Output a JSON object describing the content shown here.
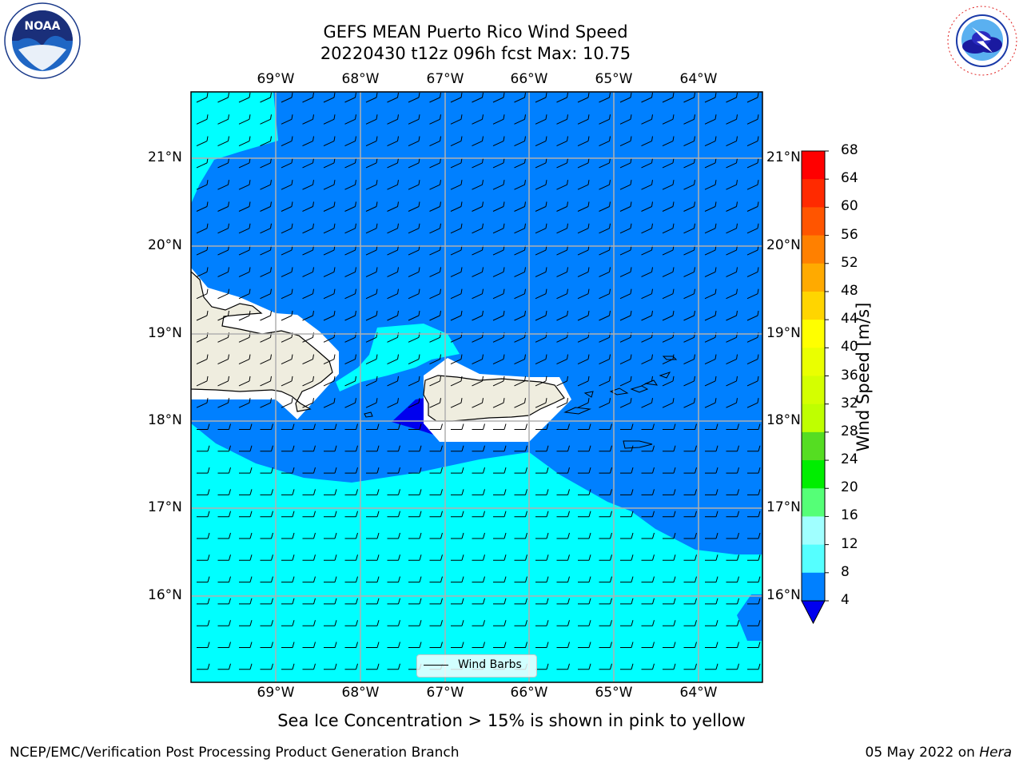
{
  "header": {
    "title_line1": "GEFS MEAN Puerto Rico Wind Speed",
    "title_line2": "20220430 t12z 096h fcst   Max: 10.75"
  },
  "map": {
    "lon_labels": [
      "69°W",
      "68°W",
      "67°W",
      "66°W",
      "65°W",
      "64°W"
    ],
    "lat_labels": [
      "21°N",
      "20°N",
      "19°N",
      "18°N",
      "17°N",
      "16°N"
    ],
    "legend_label": "Wind Barbs",
    "colors": {
      "land": "#efeddf",
      "wind_4_8": "#0080ff",
      "wind_8_12": "#00ffff",
      "wind_below_4": "#0000ee",
      "grid": "#b0b0b0",
      "barb": "#000000"
    }
  },
  "colorbar": {
    "title": "Wind Speed [m/s]",
    "ticks": [
      "68",
      "64",
      "60",
      "56",
      "52",
      "48",
      "44",
      "40",
      "36",
      "32",
      "28",
      "24",
      "20",
      "16",
      "12",
      "8",
      "4"
    ],
    "colors": [
      "#ff0000",
      "#ff2a00",
      "#ff5500",
      "#ff8000",
      "#ffaa00",
      "#ffd500",
      "#ffff00",
      "#eaff00",
      "#d4ff00",
      "#bfff00",
      "#55dd22",
      "#00ee00",
      "#55ff77",
      "#a0ffff",
      "#55ffff",
      "#00ffff",
      "#0080ff"
    ],
    "extend_color": "#0000ee"
  },
  "subtitle": "Sea Ice Concentration > 15% is shown in pink to yellow",
  "footer": {
    "left": "NCEP/EMC/Verification Post Processing Product Generation Branch",
    "right_date": "05 May 2022 on ",
    "right_machine": "Hera"
  },
  "logos": {
    "noaa_text": "NOAA",
    "nws_text": "NATIONAL WEATHER SERVICE"
  }
}
